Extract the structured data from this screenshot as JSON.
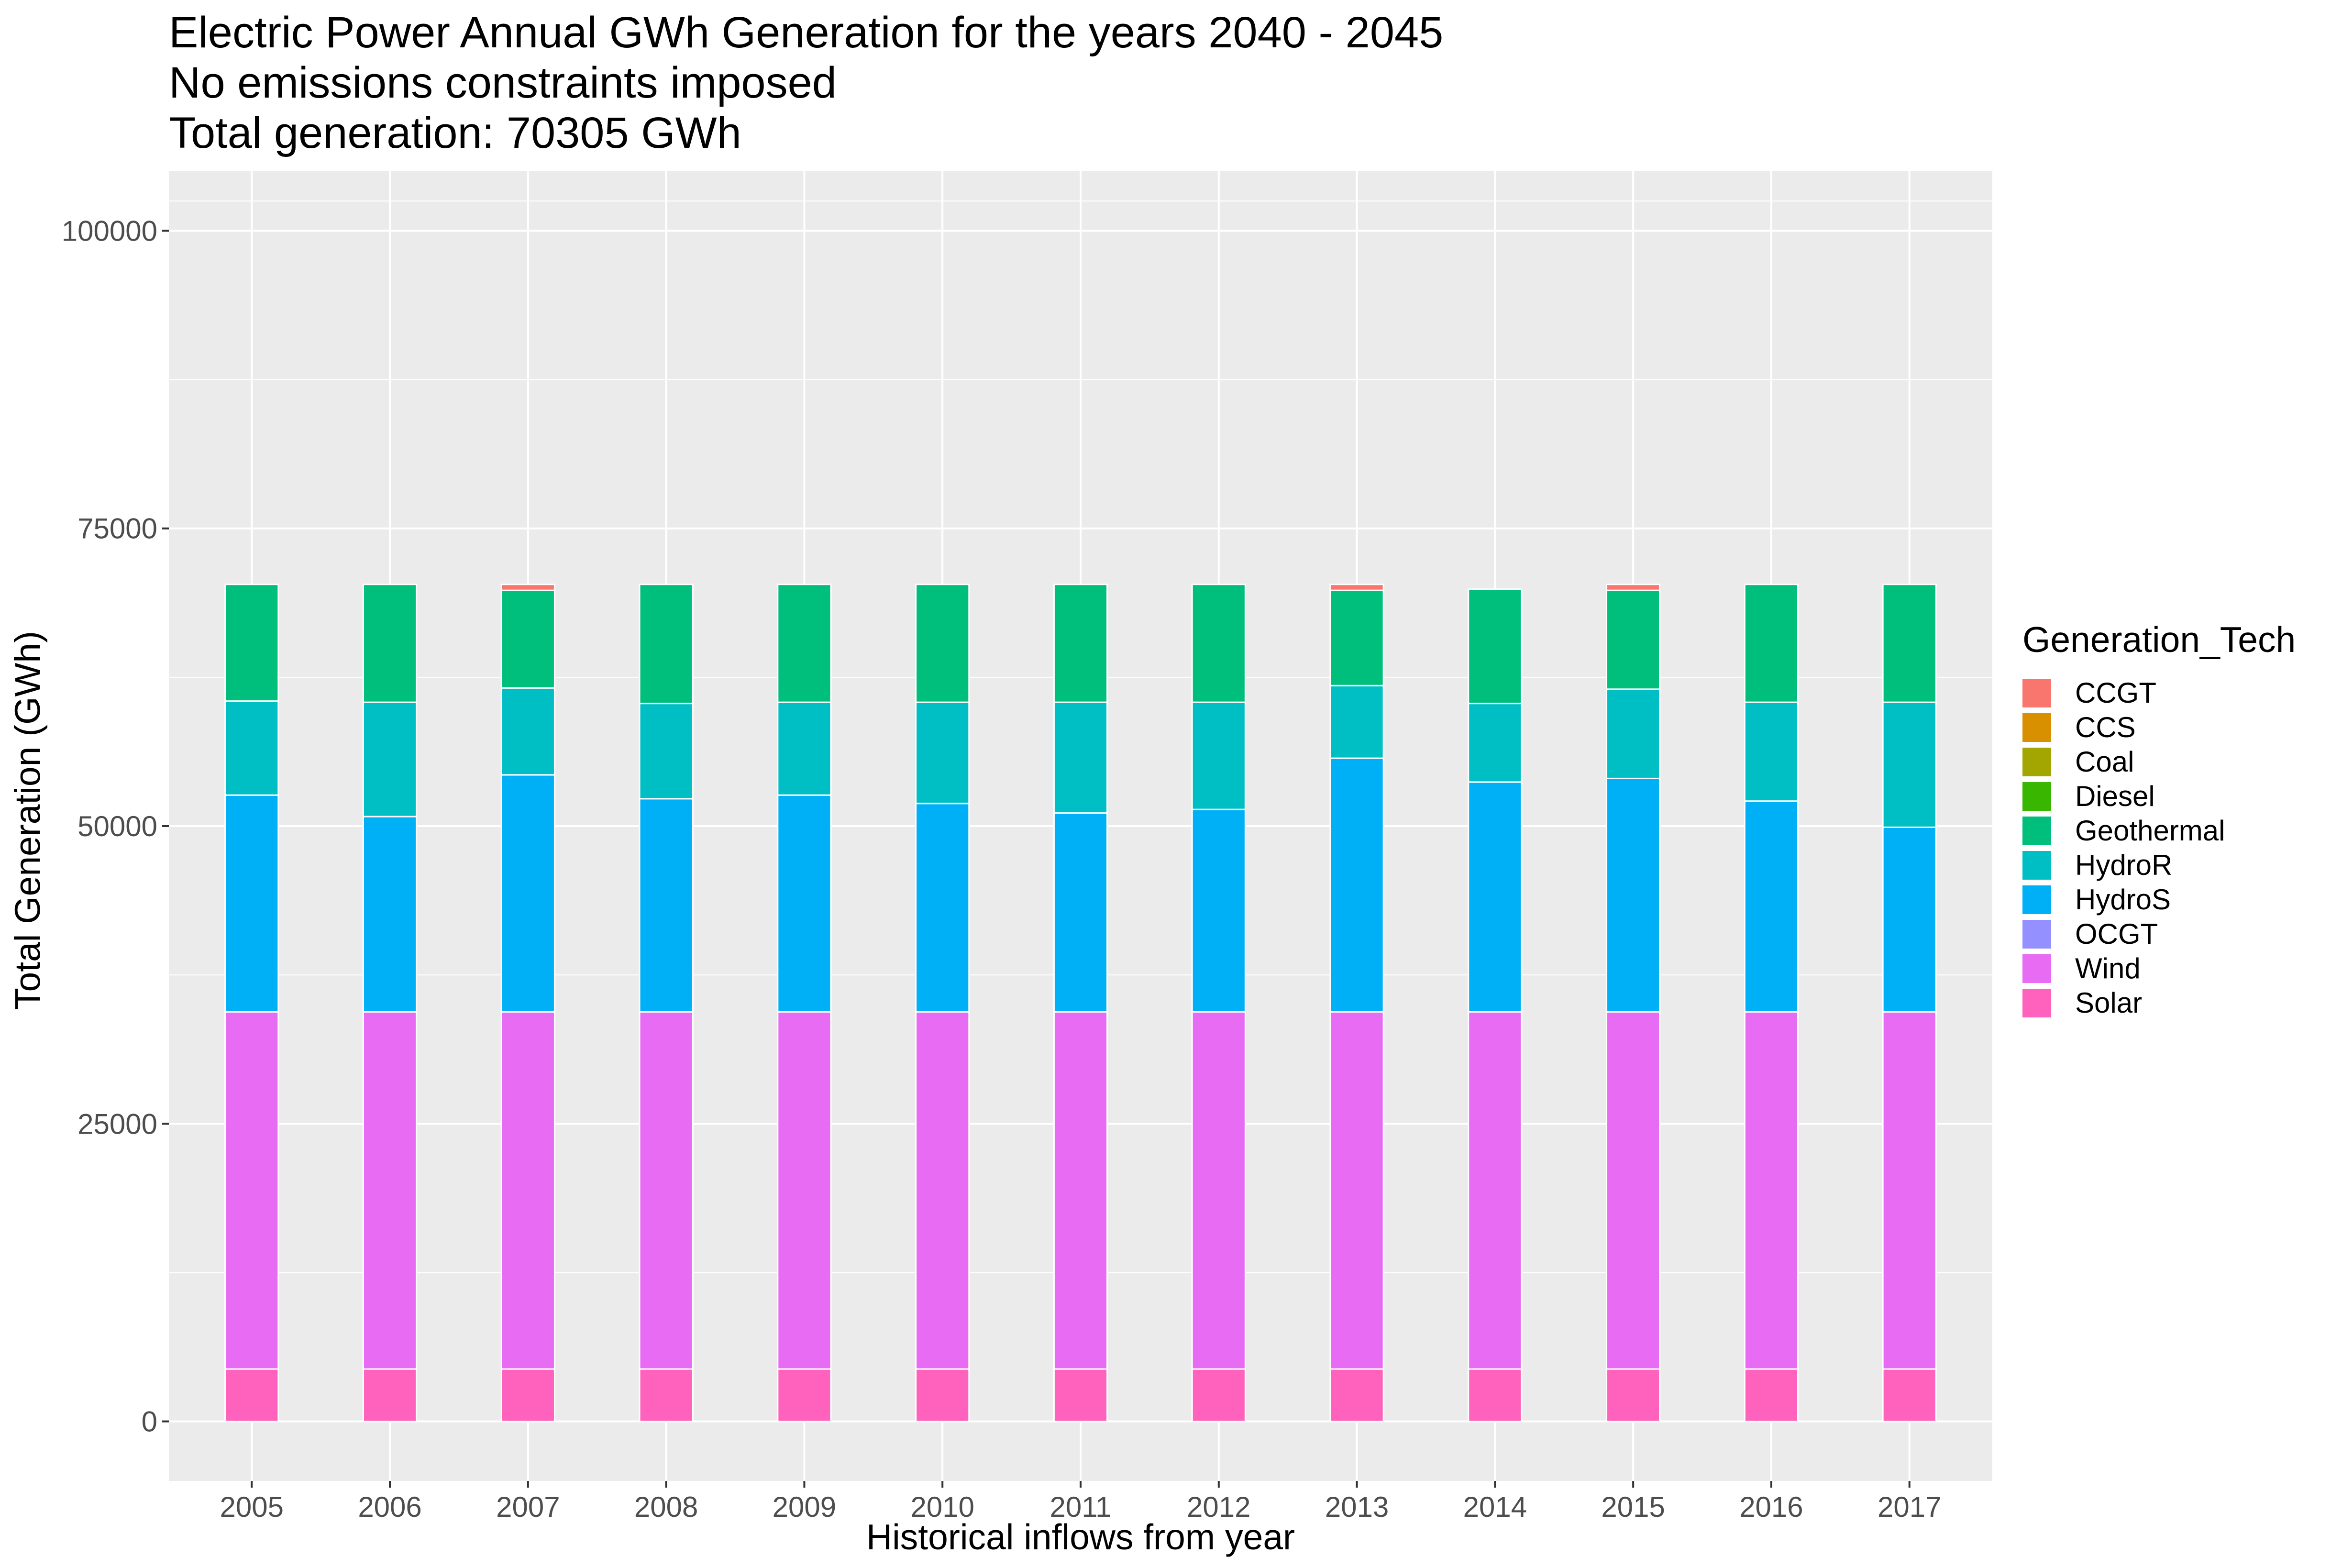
{
  "chart_data": {
    "type": "bar",
    "stacked": true,
    "title": [
      "Electric Power Annual GWh Generation for the years 2040 - 2045",
      "No emissions constraints imposed",
      "Total generation: 70305 GWh"
    ],
    "xlabel": "Historical inflows from year",
    "ylabel": "Total Generation (GWh)",
    "ylim": [
      -5000,
      105000
    ],
    "yticks": [
      0,
      25000,
      50000,
      75000,
      100000
    ],
    "ytick_labels": [
      "0",
      "25000",
      "50000",
      "75000",
      "100000"
    ],
    "grid": true,
    "legend_title": "Generation_Tech",
    "legend_position": "right",
    "legend_entries": [
      "CCGT",
      "CCS",
      "Coal",
      "Diesel",
      "Geothermal",
      "HydroR",
      "HydroS",
      "OCGT",
      "Wind",
      "Solar"
    ],
    "colors": {
      "CCGT": "#F8766D",
      "CCS": "#D89000",
      "Coal": "#A3A500",
      "Diesel": "#39B600",
      "Geothermal": "#00BF7D",
      "HydroR": "#00BFC4",
      "HydroS": "#00B0F6",
      "OCGT": "#9590FF",
      "Wind": "#E76BF3",
      "Solar": "#FF62BC"
    },
    "categories": [
      "2005",
      "2006",
      "2007",
      "2008",
      "2009",
      "2010",
      "2011",
      "2012",
      "2013",
      "2014",
      "2015",
      "2016",
      "2017"
    ],
    "series": [
      {
        "name": "Solar",
        "values": [
          4400,
          4400,
          4400,
          4400,
          4400,
          4400,
          4400,
          4400,
          4400,
          4400,
          4400,
          4400,
          4400
        ]
      },
      {
        "name": "Wind",
        "values": [
          30000,
          30000,
          30000,
          30000,
          30000,
          30000,
          30000,
          30000,
          30000,
          30000,
          30000,
          30000,
          30000
        ]
      },
      {
        "name": "HydroS",
        "values": [
          18200,
          16400,
          19900,
          17900,
          18200,
          17500,
          16700,
          17000,
          21300,
          19300,
          19600,
          17700,
          15500
        ]
      },
      {
        "name": "HydroR",
        "values": [
          7900,
          9600,
          7300,
          8000,
          7800,
          8500,
          9300,
          9000,
          6100,
          6600,
          7500,
          8300,
          10500
        ]
      },
      {
        "name": "Geothermal",
        "values": [
          9800,
          9900,
          8200,
          10000,
          9900,
          9900,
          9900,
          9900,
          8000,
          9600,
          8300,
          9900,
          9900
        ]
      },
      {
        "name": "CCGT",
        "values": [
          0,
          0,
          500,
          0,
          0,
          0,
          0,
          0,
          500,
          0,
          500,
          0,
          0
        ]
      }
    ]
  }
}
